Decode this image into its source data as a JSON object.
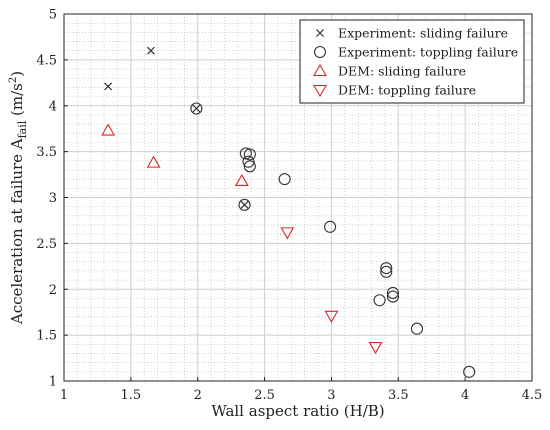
{
  "chart_data": {
    "type": "scatter",
    "xlabel": "Wall aspect ratio (H/B)",
    "ylabel": {
      "main": "Acceleration at failure A",
      "sub": "fail",
      "unit_pre": " (m/s",
      "unit_sup": "2",
      "unit_post": ")"
    },
    "xlim": [
      1,
      4.5
    ],
    "ylim": [
      1,
      5
    ],
    "x_ticks": [
      1,
      1.5,
      2,
      2.5,
      3,
      3.5,
      4,
      4.5
    ],
    "y_ticks": [
      1,
      1.5,
      2,
      2.5,
      3,
      3.5,
      4,
      4.5,
      5
    ],
    "x_tick_labels": [
      "1",
      "1.5",
      "2",
      "2.5",
      "3",
      "3.5",
      "4",
      "4.5"
    ],
    "y_tick_labels": [
      "1",
      "1.5",
      "2",
      "2.5",
      "3",
      "3.5",
      "4",
      "4.5",
      "5"
    ],
    "grid": "major solid, minor dotted",
    "legend_position": "top-right",
    "series": [
      {
        "name": "Experiment: sliding failure",
        "marker": "x",
        "color": "#333333",
        "points": [
          [
            1.33,
            4.21
          ],
          [
            1.65,
            4.6
          ],
          [
            1.99,
            3.97
          ],
          [
            2.35,
            2.92
          ]
        ]
      },
      {
        "name": "Experiment: toppling failure",
        "marker": "circle",
        "color": "#333333",
        "points": [
          [
            1.99,
            3.97
          ],
          [
            2.35,
            2.92
          ],
          [
            2.36,
            3.48
          ],
          [
            2.39,
            3.47
          ],
          [
            2.38,
            3.39
          ],
          [
            2.39,
            3.34
          ],
          [
            2.65,
            3.2
          ],
          [
            2.99,
            2.68
          ],
          [
            3.36,
            1.88
          ],
          [
            3.41,
            2.23
          ],
          [
            3.41,
            2.19
          ],
          [
            3.46,
            1.96
          ],
          [
            3.46,
            1.92
          ],
          [
            3.64,
            1.57
          ],
          [
            4.03,
            1.1
          ]
        ]
      },
      {
        "name": "DEM: sliding failure",
        "marker": "triangle-up",
        "color": "#d62728",
        "points": [
          [
            1.33,
            3.73
          ],
          [
            1.67,
            3.38
          ],
          [
            2.33,
            3.18
          ]
        ]
      },
      {
        "name": "DEM: toppling failure",
        "marker": "triangle-down",
        "color": "#d62728",
        "points": [
          [
            2.67,
            2.62
          ],
          [
            3.0,
            1.71
          ],
          [
            3.33,
            1.37
          ]
        ]
      }
    ]
  }
}
